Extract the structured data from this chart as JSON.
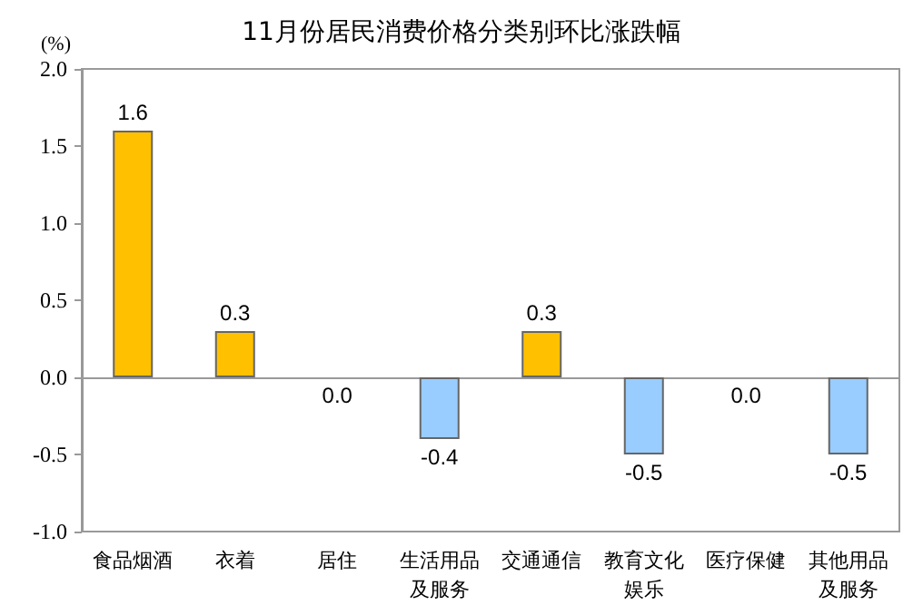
{
  "chart_data": {
    "type": "bar",
    "title": "11月份居民消费价格分类别环比涨跌幅",
    "ylabel": "(%)",
    "categories": [
      "食品烟酒",
      "衣着",
      "居住",
      "生活用品及服务",
      "交通通信",
      "教育文化娱乐",
      "医疗保健",
      "其他用品及服务"
    ],
    "values": [
      1.6,
      0.3,
      0.0,
      -0.4,
      0.3,
      -0.5,
      0.0,
      -0.5
    ],
    "value_labels": [
      "1.6",
      "0.3",
      "0.0",
      "-0.4",
      "0.3",
      "-0.5",
      "0.0",
      "-0.5"
    ],
    "colors": [
      "#ffc000",
      "#ffc000",
      "#ffc000",
      "#99ccff",
      "#ffc000",
      "#99ccff",
      "#ffc000",
      "#99ccff"
    ],
    "ylim": [
      -1.0,
      2.0
    ],
    "yticks": [
      {
        "value": -1.0,
        "label": "-1.0"
      },
      {
        "value": -0.5,
        "label": "-0.5"
      },
      {
        "value": 0,
        "label": "0.0"
      },
      {
        "value": 0.5,
        "label": "0.5"
      },
      {
        "value": 1.0,
        "label": "1.0"
      },
      {
        "value": 1.5,
        "label": "1.5"
      },
      {
        "value": 2.0,
        "label": "2.0"
      }
    ]
  }
}
